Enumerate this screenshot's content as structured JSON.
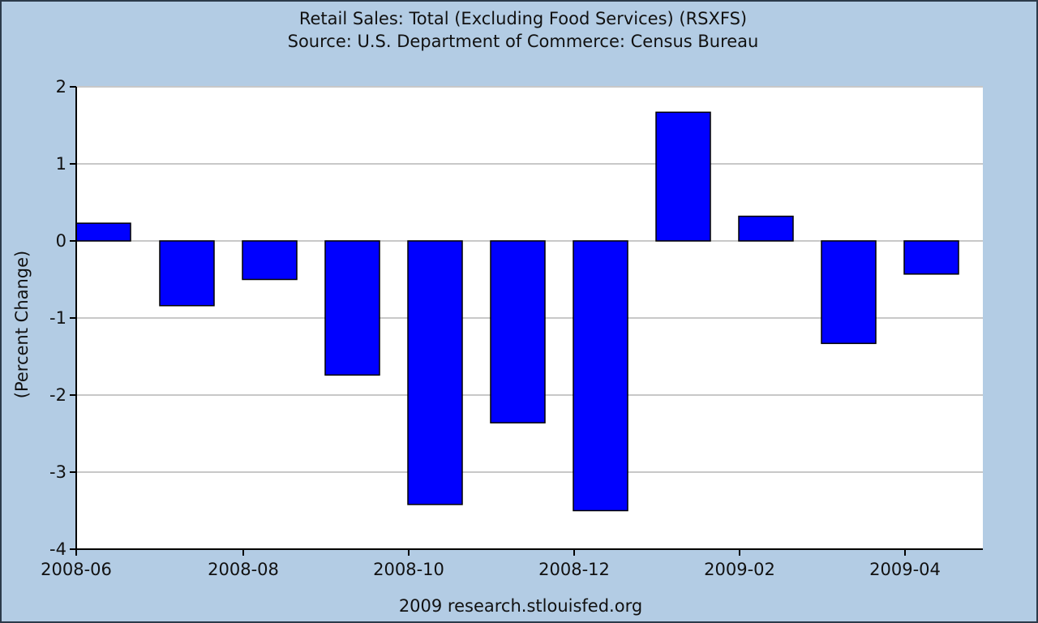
{
  "chart_data": {
    "type": "bar",
    "title": "Retail Sales: Total (Excluding Food Services) (RSXFS)",
    "subtitle": "Source: U.S. Department of Commerce: Census Bureau",
    "xlabel": "",
    "ylabel": "(Percent Change)",
    "ylim": [
      -4,
      2
    ],
    "yticks": [
      2,
      1,
      0,
      -1,
      -2,
      -3,
      -4
    ],
    "grid": true,
    "categories": [
      "2008-06",
      "2008-07",
      "2008-08",
      "2008-09",
      "2008-10",
      "2008-11",
      "2008-12",
      "2009-01",
      "2009-02",
      "2009-03",
      "2009-04"
    ],
    "values": [
      0.23,
      -0.84,
      -0.5,
      -1.74,
      -3.42,
      -2.36,
      -3.5,
      1.67,
      0.32,
      -1.33,
      -0.43
    ],
    "xtick_labels": [
      "2008-06",
      "2008-08",
      "2008-10",
      "2008-12",
      "2009-02",
      "2009-04"
    ],
    "bar_color": "#0000ff",
    "credit": "2009 research.stlouisfed.org"
  },
  "colors": {
    "background": "#b3cce4",
    "plot_background": "#ffffff",
    "gridline": "#c8c8c8",
    "bar_stroke": "#000000"
  }
}
